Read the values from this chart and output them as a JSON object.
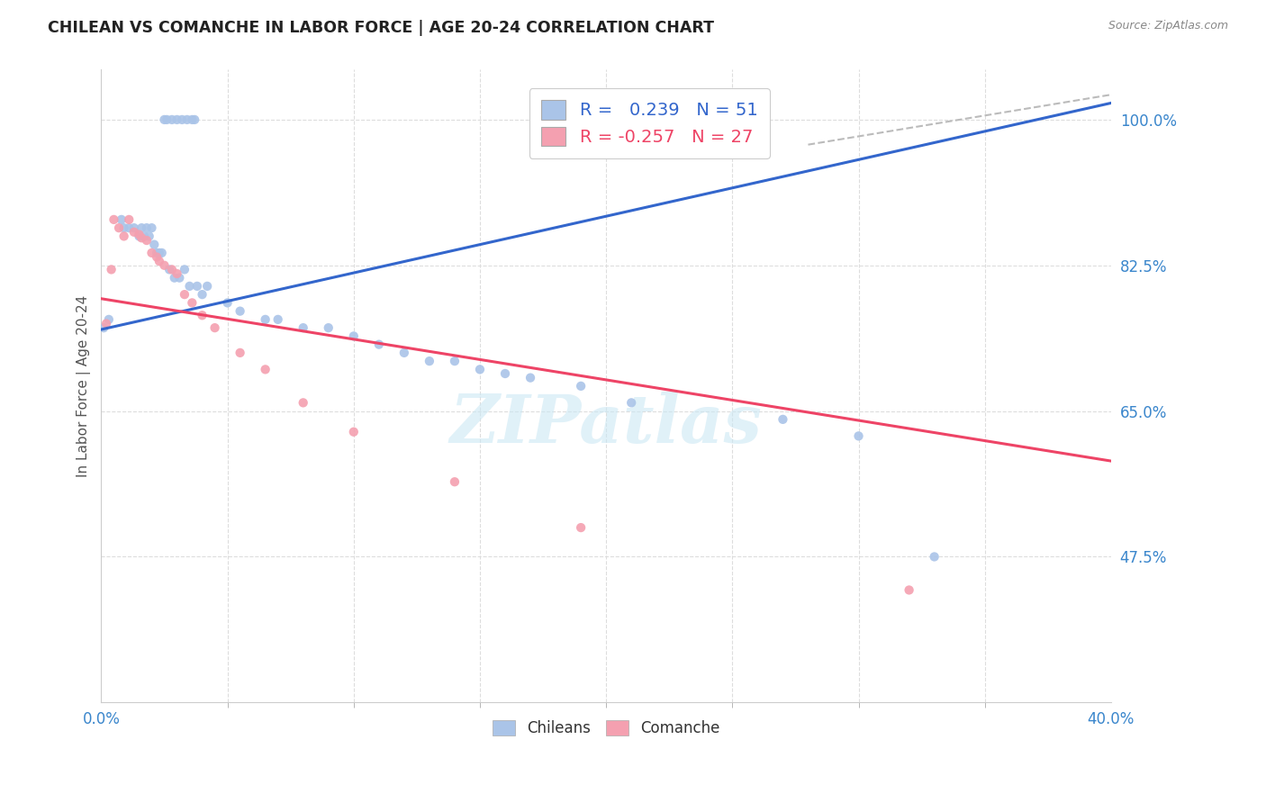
{
  "title": "CHILEAN VS COMANCHE IN LABOR FORCE | AGE 20-24 CORRELATION CHART",
  "source": "Source: ZipAtlas.com",
  "ylabel": "In Labor Force | Age 20-24",
  "xlim": [
    0.0,
    0.4
  ],
  "ylim": [
    0.3,
    1.06
  ],
  "ytick_positions": [
    0.475,
    0.65,
    0.825,
    1.0
  ],
  "ytick_labels": [
    "47.5%",
    "65.0%",
    "82.5%",
    "100.0%"
  ],
  "grid_color": "#dddddd",
  "background_color": "#ffffff",
  "chilean_color": "#aac4e8",
  "comanche_color": "#f4a0b0",
  "trend_chilean_color": "#3366cc",
  "trend_comanche_color": "#ee4466",
  "trend_chilean_dashed_color": "#bbbbbb",
  "legend_R_chilean": " 0.239",
  "legend_N_chilean": "51",
  "legend_R_comanche": "-0.257",
  "legend_N_comanche": "27",
  "chilean_x": [
    0.001,
    0.003,
    0.025,
    0.026,
    0.028,
    0.03,
    0.032,
    0.034,
    0.036,
    0.037,
    0.008,
    0.009,
    0.011,
    0.013,
    0.015,
    0.016,
    0.017,
    0.018,
    0.019,
    0.02,
    0.021,
    0.022,
    0.023,
    0.024,
    0.027,
    0.029,
    0.031,
    0.033,
    0.035,
    0.038,
    0.04,
    0.042,
    0.05,
    0.055,
    0.065,
    0.07,
    0.08,
    0.09,
    0.1,
    0.11,
    0.12,
    0.13,
    0.14,
    0.15,
    0.16,
    0.17,
    0.19,
    0.21,
    0.27,
    0.3,
    0.33
  ],
  "chilean_y": [
    0.75,
    0.76,
    1.0,
    1.0,
    1.0,
    1.0,
    1.0,
    1.0,
    1.0,
    1.0,
    0.88,
    0.87,
    0.87,
    0.87,
    0.86,
    0.87,
    0.86,
    0.87,
    0.86,
    0.87,
    0.85,
    0.84,
    0.84,
    0.84,
    0.82,
    0.81,
    0.81,
    0.82,
    0.8,
    0.8,
    0.79,
    0.8,
    0.78,
    0.77,
    0.76,
    0.76,
    0.75,
    0.75,
    0.74,
    0.73,
    0.72,
    0.71,
    0.71,
    0.7,
    0.695,
    0.69,
    0.68,
    0.66,
    0.64,
    0.62,
    0.475
  ],
  "comanche_x": [
    0.002,
    0.004,
    0.005,
    0.007,
    0.009,
    0.011,
    0.013,
    0.015,
    0.016,
    0.018,
    0.02,
    0.022,
    0.023,
    0.025,
    0.028,
    0.03,
    0.033,
    0.036,
    0.04,
    0.045,
    0.055,
    0.065,
    0.08,
    0.1,
    0.14,
    0.19,
    0.32
  ],
  "comanche_y": [
    0.755,
    0.82,
    0.88,
    0.87,
    0.86,
    0.88,
    0.865,
    0.862,
    0.858,
    0.855,
    0.84,
    0.835,
    0.83,
    0.825,
    0.82,
    0.815,
    0.79,
    0.78,
    0.765,
    0.75,
    0.72,
    0.7,
    0.66,
    0.625,
    0.565,
    0.51,
    0.435
  ],
  "watermark": "ZIPatlas",
  "marker_size": 55
}
